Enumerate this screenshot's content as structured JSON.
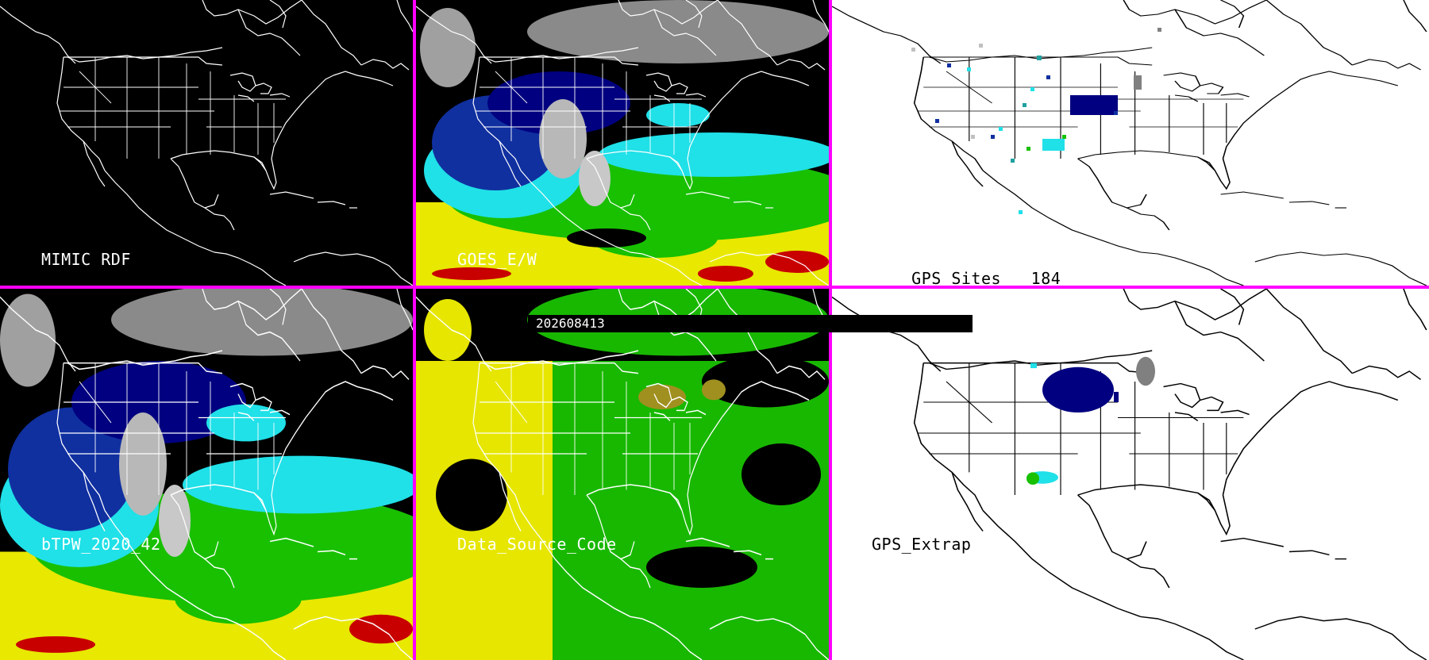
{
  "image_date": "202608413",
  "colors": {
    "divider": "#ff00ff",
    "land_dark": "#000000",
    "land_light": "#ffffff",
    "moist_high": "#c80000",
    "moist_yellow": "#e8e800",
    "moist_green": "#18c000",
    "moist_cyan": "#20e0e8",
    "moist_blue": "#1030a0",
    "moist_navy": "#000080",
    "dry_gray": "#808080",
    "source_yellow": "#e6e600",
    "source_green": "#18b800",
    "source_olive": "#a09020"
  },
  "panels": [
    {
      "id": "mimic-rdf",
      "label": "MIMIC RDF",
      "background": "#000000",
      "product": "rdf"
    },
    {
      "id": "goes-ew",
      "label": "GOES_E/W",
      "background": "#000000",
      "product": "tpw"
    },
    {
      "id": "gps-sites",
      "label": "GPS Sites",
      "count": "184",
      "background": "#ffffff",
      "product": "gps"
    },
    {
      "id": "btpw",
      "label": "bTPW_2020_42",
      "background": "#000000",
      "product": "tpw"
    },
    {
      "id": "data-source",
      "label": "Data_Source_Code",
      "background": "#000000",
      "product": "source"
    },
    {
      "id": "gps-extrap",
      "label": "GPS_Extrap",
      "background": "#ffffff",
      "product": "gps-extrap"
    }
  ]
}
